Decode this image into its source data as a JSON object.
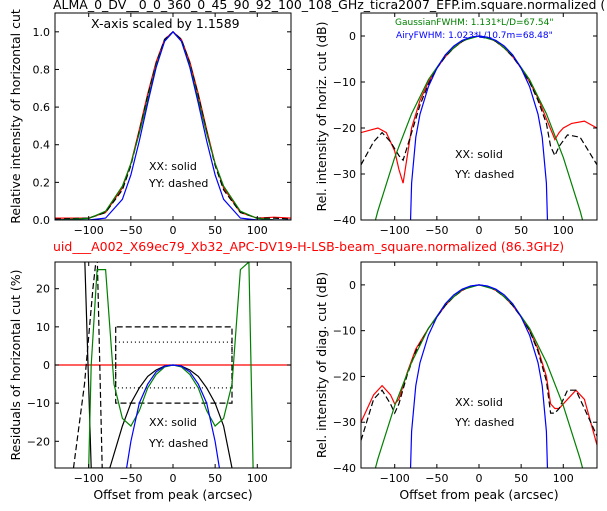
{
  "page": {
    "title_top": "ALMA_0_DV__0_0_360_0_45_90_92_100_108_GHz_ticra2007_EFP.im.square.normalized (",
    "title_mid": "uid___A002_X69ec79_Xb32_APC-DV19-H-LSB-beam_square.normalized (86.3GHz)",
    "title_mid_color": "#ff0000"
  },
  "colors": {
    "XX": "#ff0000",
    "YY": "#000000",
    "gaussian": "#008000",
    "airy": "#0000ff"
  },
  "chart_data": [
    {
      "id": "p1",
      "type": "line",
      "xlim": [
        -140,
        140
      ],
      "ylim": [
        0,
        1.1
      ],
      "xticks": [
        -100,
        -50,
        0,
        50,
        100
      ],
      "yticks": [
        0.0,
        0.2,
        0.4,
        0.6,
        0.8,
        1.0
      ],
      "xtick_labels": [
        "−100",
        "−50",
        "0",
        "50",
        "100"
      ],
      "ytick_labels": [
        "0.0",
        "0.2",
        "0.4",
        "0.6",
        "0.8",
        "1.0"
      ],
      "xlabel": "",
      "ylabel": "Relative intensity of horizontal cut",
      "annotation": "X-axis scaled by 1.1589",
      "legend": [
        "XX: solid",
        "YY: dashed"
      ],
      "series": [
        {
          "name": "XX",
          "color": "red",
          "dash": false,
          "x": [
            -140,
            -100,
            -80,
            -60,
            -50,
            -40,
            -30,
            -20,
            -10,
            0,
            10,
            20,
            30,
            40,
            50,
            60,
            80,
            100,
            120,
            140
          ],
          "y": [
            0.01,
            0.01,
            0.04,
            0.17,
            0.3,
            0.48,
            0.67,
            0.84,
            0.96,
            1.0,
            0.96,
            0.84,
            0.67,
            0.48,
            0.3,
            0.17,
            0.04,
            0.01,
            0.015,
            0.01
          ]
        },
        {
          "name": "YY",
          "color": "black",
          "dash": true,
          "x": [
            -140,
            -100,
            -80,
            -60,
            -50,
            -40,
            -30,
            -20,
            -10,
            0,
            10,
            20,
            30,
            40,
            50,
            60,
            80,
            100,
            120,
            140
          ],
          "y": [
            0.005,
            0.01,
            0.04,
            0.16,
            0.29,
            0.47,
            0.66,
            0.83,
            0.96,
            1.0,
            0.96,
            0.83,
            0.66,
            0.47,
            0.29,
            0.16,
            0.04,
            0.01,
            0.01,
            0.005
          ]
        },
        {
          "name": "Gaussian",
          "color": "green",
          "dash": false,
          "x": [
            -140,
            -100,
            -80,
            -60,
            -50,
            -40,
            -30,
            -20,
            -10,
            0,
            10,
            20,
            30,
            40,
            50,
            60,
            80,
            100,
            120,
            140
          ],
          "y": [
            0.0,
            0.008,
            0.047,
            0.18,
            0.3,
            0.46,
            0.64,
            0.82,
            0.95,
            1.0,
            0.95,
            0.82,
            0.64,
            0.46,
            0.3,
            0.18,
            0.047,
            0.008,
            0.001,
            0.0
          ]
        },
        {
          "name": "Airy",
          "color": "blue",
          "dash": false,
          "x": [
            -140,
            -100,
            -80,
            -60,
            -50,
            -40,
            -30,
            -20,
            -10,
            0,
            10,
            20,
            30,
            40,
            50,
            60,
            80,
            100,
            120,
            140
          ],
          "y": [
            0.0,
            0.0,
            0.01,
            0.11,
            0.24,
            0.42,
            0.62,
            0.81,
            0.95,
            1.0,
            0.95,
            0.81,
            0.62,
            0.42,
            0.24,
            0.11,
            0.01,
            0.0,
            0.0,
            0.0
          ]
        }
      ]
    },
    {
      "id": "p2",
      "type": "line",
      "xlim": [
        -140,
        140
      ],
      "ylim": [
        -40,
        5
      ],
      "xticks": [
        -100,
        -50,
        0,
        50,
        100
      ],
      "yticks": [
        -40,
        -30,
        -20,
        -10,
        0
      ],
      "xtick_labels": [
        "−100",
        "−50",
        "0",
        "50",
        "100"
      ],
      "ytick_labels": [
        "−40",
        "−30",
        "−20",
        "−10",
        "0"
      ],
      "xlabel": "",
      "ylabel": "Rel. intensity of horiz. cut (dB)",
      "gaussian_label": "GaussianFWHM: 1.131*L/D=67.54\"",
      "airy_label": "AiryFWHM: 1.023*L/10.7m=68.48\"",
      "legend": [
        "XX: solid",
        "YY: dashed"
      ],
      "series": [
        {
          "name": "XX",
          "color": "red",
          "dash": false,
          "x": [
            -140,
            -120,
            -110,
            -100,
            -95,
            -90,
            -80,
            -70,
            -60,
            -50,
            -40,
            -30,
            -20,
            -10,
            0,
            10,
            20,
            30,
            40,
            50,
            60,
            70,
            80,
            90,
            95,
            100,
            110,
            125,
            140
          ],
          "y": [
            -21,
            -20,
            -21,
            -25,
            -29,
            -32,
            -20,
            -14,
            -10,
            -7,
            -4.5,
            -2.6,
            -1.2,
            -0.3,
            0,
            -0.3,
            -1.2,
            -2.6,
            -4.5,
            -7,
            -10,
            -13.5,
            -18,
            -22.5,
            -21,
            -20,
            -19,
            -18.5,
            -20
          ]
        },
        {
          "name": "YY",
          "color": "black",
          "dash": true,
          "x": [
            -140,
            -125,
            -115,
            -105,
            -95,
            -90,
            -80,
            -70,
            -60,
            -50,
            -40,
            -30,
            -20,
            -10,
            0,
            10,
            20,
            30,
            40,
            50,
            60,
            70,
            80,
            85,
            90,
            95,
            105,
            120,
            140
          ],
          "y": [
            -28,
            -23,
            -21,
            -23,
            -26,
            -27,
            -21,
            -15,
            -10.5,
            -7,
            -4.5,
            -2.6,
            -1.2,
            -0.3,
            0,
            -0.3,
            -1.2,
            -2.6,
            -4.5,
            -7,
            -10,
            -14,
            -19,
            -24,
            -26,
            -24,
            -21.5,
            -22,
            -28
          ]
        },
        {
          "name": "Gaussian",
          "color": "green",
          "dash": false,
          "x": [
            -140,
            -120,
            -100,
            -80,
            -60,
            -40,
            -20,
            0,
            20,
            40,
            60,
            80,
            100,
            120,
            140
          ],
          "y": [
            -51.8,
            -38.0,
            -26.4,
            -16.9,
            -9.5,
            -4.2,
            -1.05,
            0,
            -1.05,
            -4.2,
            -9.5,
            -16.9,
            -26.4,
            -38.0,
            -51.8
          ]
        },
        {
          "name": "Airy",
          "color": "blue",
          "dash": false,
          "x": [
            -82,
            -80,
            -75,
            -70,
            -60,
            -50,
            -40,
            -30,
            -20,
            -10,
            0,
            10,
            20,
            30,
            40,
            50,
            60,
            70,
            75,
            80,
            82
          ],
          "y": [
            -45,
            -32,
            -22,
            -17,
            -11,
            -7,
            -4.1,
            -2.2,
            -0.95,
            -0.25,
            0,
            -0.25,
            -0.95,
            -2.2,
            -4.1,
            -7,
            -11,
            -17,
            -22,
            -32,
            -45
          ]
        }
      ]
    },
    {
      "id": "p3",
      "type": "line",
      "xlim": [
        -140,
        140
      ],
      "ylim": [
        -27,
        27
      ],
      "xticks": [
        -100,
        -50,
        0,
        50,
        100
      ],
      "yticks": [
        -20,
        -10,
        0,
        10,
        20
      ],
      "xtick_labels": [
        "−100",
        "−50",
        "0",
        "50",
        "100"
      ],
      "ytick_labels": [
        "−20",
        "−10",
        "0",
        "10",
        "20"
      ],
      "xlabel": "Offset from peak (arcsec)",
      "ylabel": "Residuals of horizontal cut (%)",
      "legend": [
        "XX: solid",
        "YY: dashed"
      ],
      "series": [
        {
          "name": "zero",
          "color": "red",
          "dash": false,
          "x": [
            -140,
            140
          ],
          "y": [
            0,
            0
          ]
        },
        {
          "name": "box10",
          "color": "black",
          "dash": true,
          "x": [
            -68,
            -68,
            70,
            70,
            -68
          ],
          "y": [
            10,
            -10,
            -10,
            10,
            10
          ]
        },
        {
          "name": "box6",
          "color": "black",
          "dash": "dot",
          "x": [
            -68,
            -68,
            70,
            70,
            -68
          ],
          "y": [
            6,
            -6,
            -6,
            6,
            6
          ]
        },
        {
          "name": "XX",
          "color": "black",
          "dash": false,
          "x": [
            -105,
            -97,
            -85,
            -75,
            -60,
            -50,
            -40,
            -30,
            -20,
            -10,
            0,
            10,
            20,
            30,
            40,
            50,
            60,
            70
          ],
          "y": [
            30,
            -27,
            -27,
            -27,
            -16,
            -10,
            -6,
            -3,
            -1.3,
            -0.3,
            0,
            -0.3,
            -1.3,
            -3,
            -6,
            -10,
            -16,
            -27
          ]
        },
        {
          "name": "YY",
          "color": "black",
          "dash": true,
          "x": [
            -118,
            -105,
            -95,
            -90,
            -84
          ],
          "y": [
            -27,
            -5,
            20,
            30,
            -27
          ]
        },
        {
          "name": "Gaussian",
          "color": "green",
          "dash": false,
          "x": [
            -100,
            -97,
            -90,
            -80,
            -70,
            -60,
            -50,
            -40,
            -30,
            -20,
            -10,
            0,
            10,
            20,
            30,
            40,
            50,
            60,
            70,
            80,
            90,
            95
          ],
          "y": [
            -27,
            0,
            25,
            25,
            -5,
            -14,
            -16,
            -12,
            -6,
            -2.5,
            -0.5,
            0,
            -0.5,
            -2.5,
            -6,
            -12,
            -16,
            -14,
            -5,
            25,
            27,
            -27
          ]
        },
        {
          "name": "Airy",
          "color": "blue",
          "dash": false,
          "x": [
            -55,
            -50,
            -40,
            -30,
            -20,
            -10,
            0,
            10,
            20,
            30,
            40,
            50,
            55
          ],
          "y": [
            -27,
            -20,
            -10,
            -5,
            -1.8,
            -0.3,
            0,
            -0.3,
            -1.8,
            -5,
            -10,
            -20,
            -27
          ]
        }
      ],
      "legend_pos": "bottom-center"
    },
    {
      "id": "p4",
      "type": "line",
      "xlim": [
        -140,
        140
      ],
      "ylim": [
        -40,
        5
      ],
      "xticks": [
        -100,
        -50,
        0,
        50,
        100
      ],
      "yticks": [
        -40,
        -30,
        -20,
        -10,
        0
      ],
      "xtick_labels": [
        "−100",
        "−50",
        "0",
        "50",
        "100"
      ],
      "ytick_labels": [
        "−40",
        "−30",
        "−20",
        "−10",
        "0"
      ],
      "xlabel": "Offset from peak (arcsec)",
      "ylabel": "Rel. intensity of diag. cut (dB)",
      "legend": [
        "XX: solid",
        "YY: dashed"
      ],
      "series": [
        {
          "name": "XX",
          "color": "red",
          "dash": false,
          "x": [
            -140,
            -125,
            -115,
            -105,
            -100,
            -95,
            -85,
            -75,
            -60,
            -50,
            -40,
            -30,
            -20,
            -10,
            0,
            10,
            20,
            30,
            40,
            50,
            60,
            70,
            80,
            85,
            90,
            95,
            105,
            115,
            125,
            140
          ],
          "y": [
            -30,
            -24,
            -22,
            -24,
            -26,
            -25,
            -19,
            -14,
            -9.5,
            -7,
            -4.5,
            -2.6,
            -1.2,
            -0.3,
            0,
            -0.3,
            -1.2,
            -2.6,
            -4.5,
            -7,
            -10,
            -14,
            -20,
            -26,
            -27,
            -27,
            -25,
            -23,
            -25,
            -35
          ]
        },
        {
          "name": "YY",
          "color": "black",
          "dash": true,
          "x": [
            -140,
            -125,
            -115,
            -105,
            -100,
            -95,
            -85,
            -75,
            -60,
            -50,
            -40,
            -30,
            -20,
            -10,
            0,
            10,
            20,
            30,
            40,
            50,
            60,
            70,
            80,
            85,
            90,
            95,
            105,
            115,
            125,
            140
          ],
          "y": [
            -34,
            -25,
            -23,
            -26,
            -28,
            -26,
            -19.5,
            -14.5,
            -9.5,
            -7,
            -4.5,
            -2.6,
            -1.2,
            -0.3,
            0,
            -0.3,
            -1.2,
            -2.6,
            -4.5,
            -7,
            -10,
            -14.5,
            -21,
            -28,
            -28,
            -27,
            -23,
            -23,
            -27,
            -33
          ]
        },
        {
          "name": "Gaussian",
          "color": "green",
          "dash": false,
          "x": [
            -140,
            -120,
            -100,
            -80,
            -60,
            -40,
            -20,
            0,
            20,
            40,
            60,
            80,
            100,
            120,
            140
          ],
          "y": [
            -51.8,
            -38.0,
            -26.4,
            -16.9,
            -9.5,
            -4.2,
            -1.05,
            0,
            -1.05,
            -4.2,
            -9.5,
            -16.9,
            -26.4,
            -38.0,
            -51.8
          ]
        },
        {
          "name": "Airy",
          "color": "blue",
          "dash": false,
          "x": [
            -82,
            -80,
            -75,
            -70,
            -60,
            -50,
            -40,
            -30,
            -20,
            -10,
            0,
            10,
            20,
            30,
            40,
            50,
            60,
            70,
            75,
            80,
            82
          ],
          "y": [
            -45,
            -32,
            -22,
            -17,
            -11,
            -7,
            -4.1,
            -2.2,
            -0.95,
            -0.25,
            0,
            -0.25,
            -0.95,
            -2.2,
            -4.1,
            -7,
            -11,
            -17,
            -22,
            -32,
            -45
          ]
        }
      ]
    }
  ]
}
